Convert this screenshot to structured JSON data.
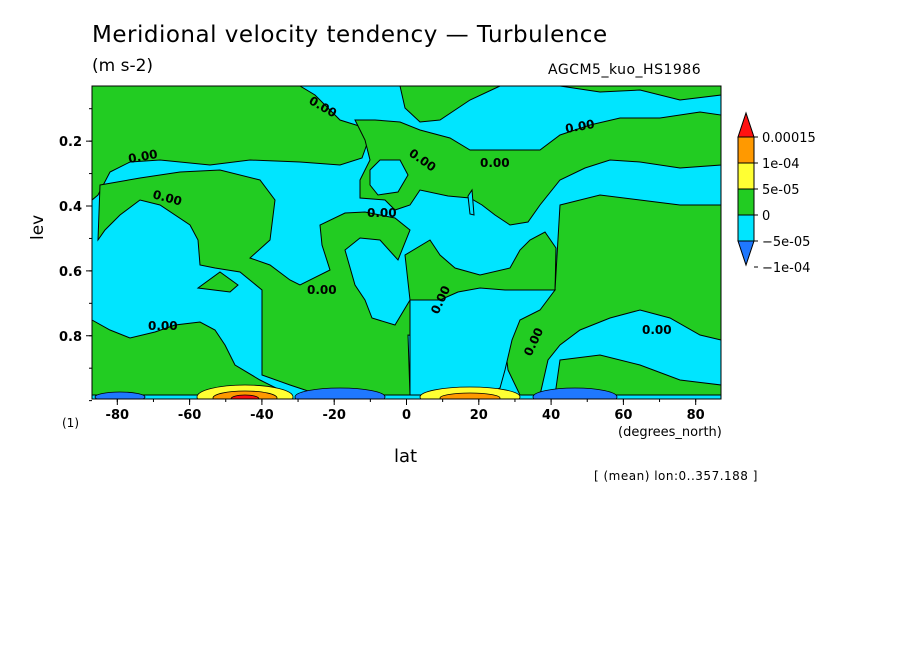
{
  "figure": {
    "title": "Meridional velocity tendency — Turbulence",
    "units": "(m s-2)",
    "run": "AGCM5_kuo_HS1986",
    "page_label": "(1)",
    "x_units": "(degrees_north)",
    "mean_note": "[ (mean) lon:0..357.188 ]"
  },
  "chart_data": {
    "type": "heatmap",
    "plot_style": "filled contour",
    "xlabel": "lat",
    "ylabel": "lev",
    "xlim": [
      -87,
      87
    ],
    "ylim": [
      0.995,
      0.03
    ],
    "y_axis_inverted": true,
    "x_ticks": [
      "-80",
      "-60",
      "-40",
      "-20",
      "0",
      "20",
      "40",
      "60",
      "80"
    ],
    "y_ticks": [
      "0.2",
      "0.4",
      "0.6",
      "0.8"
    ],
    "contour_labels": [
      "0.00",
      "0.00",
      "0.00",
      "0.00",
      "0.00",
      "0.00",
      "0.00",
      "0.00",
      "0.00",
      "0.00",
      "0.00",
      "0.00"
    ],
    "colorbar": {
      "labels": [
        "0.00015",
        "1e-04",
        "5e-05",
        "0",
        "−5e-05",
        "−1e-04"
      ],
      "levels": [
        -0.0001,
        -5e-05,
        0,
        5e-05,
        0.0001,
        0.00015
      ],
      "colors": [
        "#1f78ff",
        "#00e5ff",
        "#22cc22",
        "#ffff33",
        "#ff9900",
        "#ff1111"
      ],
      "extend": "both"
    },
    "regions": [
      {
        "sign": "positive",
        "lat": [
          -87,
          87
        ],
        "lev": [
          0.03,
          0.995
        ],
        "note": "mostly near 0, alternating 0..5e-05 and -5e-05..0 bands"
      },
      {
        "sign": "strong",
        "lat": [
          -60,
          -35
        ],
        "lev": [
          0.95,
          0.995
        ],
        "note": "surface maximum up to 0.00015"
      },
      {
        "sign": "negative",
        "lat": [
          -30,
          -5
        ],
        "lev": [
          0.95,
          0.995
        ],
        "note": "surface minimum to -1e-04"
      },
      {
        "sign": "strong",
        "lat": [
          5,
          35
        ],
        "lev": [
          0.96,
          0.995
        ],
        "note": "surface maximum 1e-04"
      },
      {
        "sign": "negative",
        "lat": [
          35,
          65
        ],
        "lev": [
          0.96,
          0.995
        ],
        "note": "surface minimum -1e-04"
      }
    ]
  },
  "colors": {
    "green": "#22cc22",
    "cyan": "#00e5ff",
    "blue": "#1f78ff",
    "yellow": "#ffff33",
    "orange": "#ff9900",
    "red": "#ff1111"
  }
}
